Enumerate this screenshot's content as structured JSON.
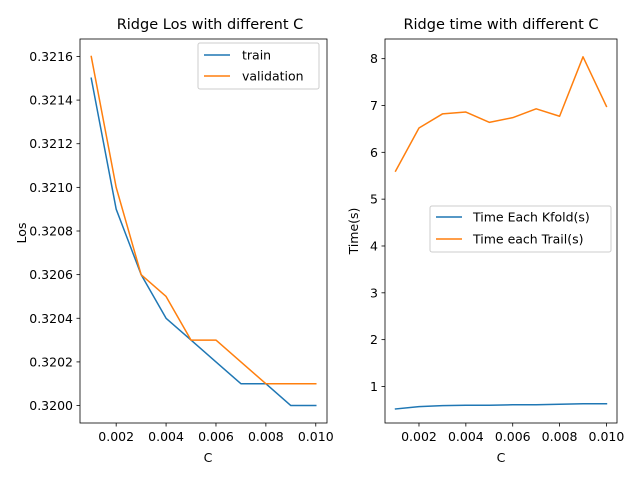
{
  "chart_data": [
    {
      "type": "line",
      "title": "Ridge Los with different C",
      "xlabel": "C",
      "ylabel": "Los",
      "xlim": [
        0.00055,
        0.01045
      ],
      "ylim": [
        0.31992,
        0.32168
      ],
      "xticks": [
        0.002,
        0.004,
        0.006,
        0.008,
        0.01
      ],
      "xtick_labels": [
        "0.002",
        "0.004",
        "0.006",
        "0.008",
        "0.010"
      ],
      "yticks": [
        0.32,
        0.3202,
        0.3204,
        0.3206,
        0.3208,
        0.321,
        0.3212,
        0.3214,
        0.3216
      ],
      "ytick_labels": [
        "0.3200",
        "0.3202",
        "0.3204",
        "0.3206",
        "0.3208",
        "0.3210",
        "0.3212",
        "0.3214",
        "0.3216"
      ],
      "legend_position": "upper-right",
      "grid": false,
      "x": [
        0.001,
        0.002,
        0.003,
        0.004,
        0.005,
        0.006,
        0.007,
        0.008,
        0.009,
        0.01
      ],
      "series": [
        {
          "name": "train",
          "color": "#1f77b4",
          "values": [
            0.3215,
            0.3209,
            0.3206,
            0.3204,
            0.3203,
            0.3202,
            0.3201,
            0.3201,
            0.32,
            0.32
          ]
        },
        {
          "name": "validation",
          "color": "#ff7f0e",
          "values": [
            0.3216,
            0.321,
            0.3206,
            0.3205,
            0.3203,
            0.3203,
            0.3202,
            0.3201,
            0.3201,
            0.3201
          ]
        }
      ]
    },
    {
      "type": "line",
      "title": "Ridge time with different C",
      "xlabel": "C",
      "ylabel": "Time(s)",
      "xlim": [
        0.00055,
        0.01045
      ],
      "ylim": [
        0.22,
        8.42
      ],
      "xticks": [
        0.002,
        0.004,
        0.006,
        0.008,
        0.01
      ],
      "xtick_labels": [
        "0.002",
        "0.004",
        "0.006",
        "0.008",
        "0.010"
      ],
      "yticks": [
        1,
        2,
        3,
        4,
        5,
        6,
        7,
        8
      ],
      "ytick_labels": [
        "1",
        "2",
        "3",
        "4",
        "5",
        "6",
        "7",
        "8"
      ],
      "legend_position": "center-right",
      "grid": false,
      "x": [
        0.001,
        0.002,
        0.003,
        0.004,
        0.005,
        0.006,
        0.007,
        0.008,
        0.009,
        0.01
      ],
      "series": [
        {
          "name": "Time Each Kfold(s)",
          "color": "#1f77b4",
          "values": [
            0.52,
            0.57,
            0.59,
            0.6,
            0.6,
            0.61,
            0.61,
            0.62,
            0.63,
            0.63
          ]
        },
        {
          "name": "Time each Trail(s)",
          "color": "#ff7f0e",
          "values": [
            5.6,
            6.52,
            6.82,
            6.86,
            6.64,
            6.74,
            6.93,
            6.77,
            8.04,
            6.98
          ]
        }
      ]
    }
  ]
}
